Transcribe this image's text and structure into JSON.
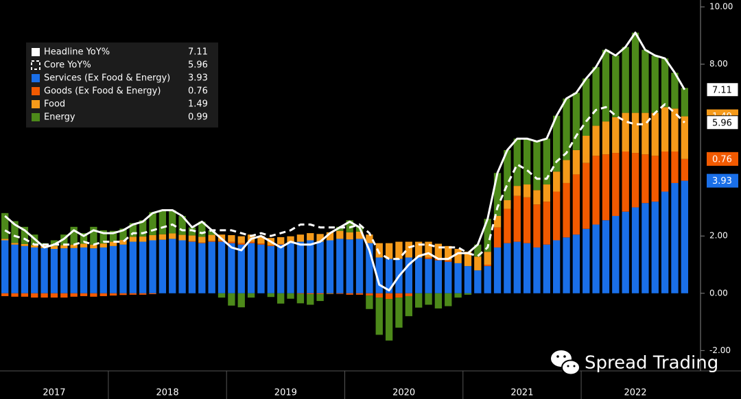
{
  "chart_data": {
    "type": "stacked_bar_line",
    "categories": [
      "2017",
      null,
      null,
      null,
      null,
      null,
      null,
      null,
      null,
      null,
      null,
      "2018",
      null,
      null,
      null,
      null,
      null,
      null,
      null,
      null,
      null,
      null,
      null,
      "2019",
      null,
      null,
      null,
      null,
      null,
      null,
      null,
      null,
      null,
      null,
      null,
      "2020",
      null,
      null,
      null,
      null,
      null,
      null,
      null,
      null,
      null,
      null,
      null,
      "2021",
      null,
      null,
      null,
      null,
      null,
      null,
      null,
      null,
      null,
      null,
      null,
      "2022",
      null,
      null,
      null,
      null,
      null,
      null,
      null,
      null,
      null,
      null
    ],
    "series": [
      {
        "name": "Headline YoY%",
        "kind": "line",
        "color": "#ffffff",
        "tagged": true,
        "values": [
          2.7,
          2.4,
          2.2,
          1.9,
          1.6,
          1.7,
          1.9,
          2.2,
          2.0,
          2.2,
          2.1,
          2.1,
          2.2,
          2.4,
          2.5,
          2.8,
          2.9,
          2.9,
          2.7,
          2.3,
          2.5,
          2.2,
          1.9,
          1.6,
          1.5,
          1.9,
          2.0,
          1.8,
          1.6,
          1.8,
          1.7,
          1.7,
          1.8,
          2.1,
          2.3,
          2.5,
          2.3,
          1.5,
          0.3,
          0.1,
          0.6,
          1.0,
          1.3,
          1.4,
          1.2,
          1.2,
          1.4,
          1.4,
          1.7,
          2.6,
          4.2,
          5.0,
          5.4,
          5.4,
          5.3,
          5.4,
          6.2,
          6.8,
          7.0,
          7.5,
          7.9,
          8.5,
          8.3,
          8.6,
          9.1,
          8.5,
          8.3,
          8.2,
          7.7,
          7.11
        ]
      },
      {
        "name": "Core YoY%",
        "kind": "dash",
        "color": "#ffffff",
        "tagged": true,
        "values": [
          2.2,
          2.0,
          1.9,
          1.7,
          1.7,
          1.7,
          1.7,
          1.7,
          1.8,
          1.7,
          1.8,
          1.8,
          1.8,
          2.1,
          2.1,
          2.2,
          2.3,
          2.4,
          2.2,
          2.2,
          2.1,
          2.2,
          2.2,
          2.2,
          2.1,
          2.0,
          2.1,
          2.0,
          2.1,
          2.2,
          2.4,
          2.4,
          2.3,
          2.3,
          2.3,
          2.3,
          2.4,
          2.1,
          1.4,
          1.2,
          1.2,
          1.6,
          1.7,
          1.7,
          1.6,
          1.6,
          1.6,
          1.4,
          1.3,
          1.6,
          3.0,
          3.8,
          4.5,
          4.3,
          4.0,
          4.0,
          4.6,
          4.9,
          5.5,
          6.0,
          6.4,
          6.5,
          6.2,
          6.0,
          5.9,
          5.9,
          6.3,
          6.6,
          6.3,
          5.96
        ]
      },
      {
        "name": "Services (Ex Food & Energy)",
        "kind": "bar",
        "color": "#1a6fe8",
        "tagged": true,
        "values": [
          1.85,
          1.7,
          1.65,
          1.6,
          1.58,
          1.55,
          1.57,
          1.58,
          1.6,
          1.57,
          1.6,
          1.65,
          1.7,
          1.8,
          1.8,
          1.85,
          1.87,
          1.9,
          1.85,
          1.8,
          1.75,
          1.8,
          1.8,
          1.75,
          1.7,
          1.75,
          1.7,
          1.65,
          1.7,
          1.75,
          1.8,
          1.85,
          1.8,
          1.85,
          1.9,
          1.88,
          1.9,
          1.75,
          1.25,
          1.2,
          1.2,
          1.25,
          1.25,
          1.2,
          1.15,
          1.1,
          1.05,
          0.95,
          0.8,
          0.95,
          1.6,
          1.75,
          1.8,
          1.75,
          1.6,
          1.7,
          1.85,
          1.95,
          2.05,
          2.25,
          2.4,
          2.55,
          2.7,
          2.85,
          3.0,
          3.15,
          3.2,
          3.55,
          3.85,
          3.93
        ]
      },
      {
        "name": "Goods (Ex Food & Energy)",
        "kind": "bar",
        "color": "#f25a00",
        "tagged": true,
        "values": [
          -0.1,
          -0.12,
          -0.12,
          -0.15,
          -0.15,
          -0.15,
          -0.15,
          -0.12,
          -0.1,
          -0.12,
          -0.1,
          -0.08,
          -0.06,
          -0.05,
          -0.05,
          -0.03,
          0,
          0,
          0,
          0.02,
          0.02,
          0.03,
          0.03,
          0.05,
          0.05,
          0.05,
          0.04,
          0.03,
          0.02,
          0,
          -0.02,
          -0.03,
          -0.03,
          -0.02,
          -0.02,
          -0.05,
          -0.05,
          -0.08,
          -0.15,
          -0.2,
          -0.15,
          -0.1,
          0,
          0.05,
          0.05,
          0.05,
          0,
          0,
          0,
          0.05,
          0.7,
          1.2,
          1.6,
          1.6,
          1.5,
          1.5,
          1.7,
          1.9,
          2.1,
          2.3,
          2.4,
          2.3,
          2.2,
          2.1,
          1.9,
          1.7,
          1.6,
          1.4,
          1.1,
          0.76
        ]
      },
      {
        "name": "Food",
        "kind": "bar",
        "color": "#f59a1a",
        "tagged": true,
        "values": [
          0.05,
          0.06,
          0.07,
          0.08,
          0.09,
          0.1,
          0.11,
          0.12,
          0.13,
          0.13,
          0.14,
          0.15,
          0.16,
          0.17,
          0.18,
          0.18,
          0.19,
          0.19,
          0.19,
          0.2,
          0.2,
          0.21,
          0.22,
          0.23,
          0.24,
          0.25,
          0.26,
          0.25,
          0.24,
          0.24,
          0.25,
          0.25,
          0.27,
          0.28,
          0.28,
          0.25,
          0.25,
          0.3,
          0.5,
          0.55,
          0.6,
          0.55,
          0.55,
          0.55,
          0.53,
          0.5,
          0.5,
          0.5,
          0.48,
          0.45,
          0.4,
          0.3,
          0.35,
          0.45,
          0.5,
          0.6,
          0.7,
          0.8,
          0.85,
          0.95,
          1.05,
          1.15,
          1.25,
          1.35,
          1.4,
          1.45,
          1.5,
          1.55,
          1.5,
          1.49
        ]
      },
      {
        "name": "Energy",
        "kind": "bar",
        "color": "#4d8a1a",
        "tagged": false,
        "values": [
          0.9,
          0.76,
          0.6,
          0.37,
          0.08,
          0.2,
          0.37,
          0.62,
          0.37,
          0.62,
          0.46,
          0.38,
          0.4,
          0.48,
          0.57,
          0.8,
          0.84,
          0.81,
          0.66,
          0.28,
          0.53,
          0.16,
          -0.15,
          -0.43,
          -0.49,
          -0.15,
          0,
          -0.13,
          -0.36,
          -0.19,
          -0.33,
          -0.37,
          -0.24,
          -0.01,
          0.14,
          0.42,
          0.2,
          -0.47,
          -1.3,
          -1.45,
          -1.05,
          -0.7,
          -0.5,
          -0.4,
          -0.53,
          -0.45,
          -0.15,
          -0.05,
          0.42,
          1.15,
          1.5,
          1.75,
          1.65,
          1.6,
          1.7,
          1.6,
          1.95,
          2.15,
          2.0,
          2.0,
          2.05,
          2.5,
          2.15,
          2.3,
          2.8,
          2.2,
          2.0,
          1.7,
          1.25,
          0.99
        ]
      }
    ],
    "ylim": [
      -2.71,
      10.24
    ],
    "yticks": [
      {
        "value": -2,
        "label": "-2.00"
      },
      {
        "value": 0,
        "label": "0.00"
      },
      {
        "value": 2,
        "label": "2.00"
      },
      {
        "value": 8,
        "label": "8.00"
      },
      {
        "value": 10,
        "label": "10.00"
      }
    ],
    "legend": "upper left",
    "watermark": "Spread Trading"
  }
}
